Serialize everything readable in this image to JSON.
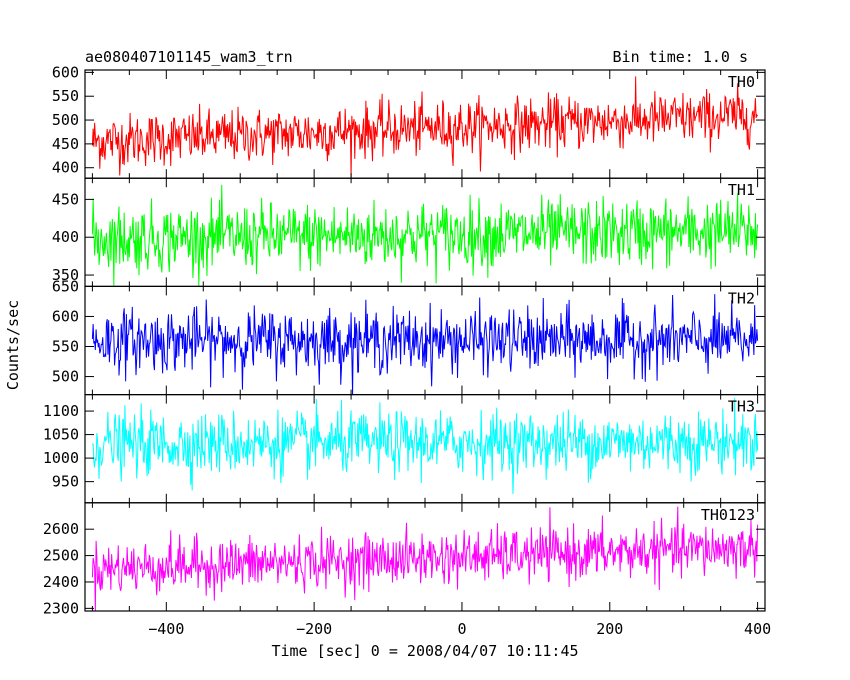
{
  "header": {
    "title": "ae080407101145_wam3_trn",
    "bin_time": "Bin time: 1.0 s"
  },
  "axes": {
    "ylabel": "Counts/sec",
    "xlabel": "Time [sec] 0 = 2008/04/07 10:11:45"
  },
  "chart_data": {
    "type": "line",
    "xlim": [
      -510,
      410
    ],
    "x_ticks": [
      -400,
      -200,
      0,
      200,
      400
    ],
    "x_tick_labels": [
      "−400",
      "−200",
      "0",
      "200",
      "400"
    ],
    "grid": false,
    "panels": [
      {
        "name": "TH0",
        "color": "#ff0000",
        "ylim": [
          378,
          605
        ],
        "yticks": [
          400,
          450,
          500,
          550,
          600
        ],
        "x_start": -500,
        "x_end": 400,
        "bin": 1.0,
        "baseline_start": 455,
        "baseline_end": 510,
        "spread": 28
      },
      {
        "name": "TH1",
        "color": "#00ff00",
        "ylim": [
          335,
          478
        ],
        "yticks": [
          350,
          400,
          450
        ],
        "x_start": -500,
        "x_end": 400,
        "bin": 1.0,
        "baseline_start": 398,
        "baseline_end": 408,
        "spread": 22
      },
      {
        "name": "TH2",
        "color": "#0000ff",
        "ylim": [
          470,
          650
        ],
        "yticks": [
          500,
          550,
          600,
          650
        ],
        "x_start": -500,
        "x_end": 400,
        "bin": 1.0,
        "baseline_start": 560,
        "baseline_end": 560,
        "spread": 26
      },
      {
        "name": "TH3",
        "color": "#00ffff",
        "ylim": [
          905,
          1135
        ],
        "yticks": [
          950,
          1000,
          1050,
          1100
        ],
        "x_start": -500,
        "x_end": 400,
        "bin": 1.0,
        "baseline_start": 1030,
        "baseline_end": 1035,
        "spread": 33
      },
      {
        "name": "TH0123",
        "color": "#ff00ff",
        "ylim": [
          2290,
          2700
        ],
        "yticks": [
          2300,
          2400,
          2500,
          2600
        ],
        "x_start": -500,
        "x_end": 400,
        "bin": 1.0,
        "baseline_start": 2450,
        "baseline_end": 2530,
        "spread": 50
      }
    ]
  }
}
